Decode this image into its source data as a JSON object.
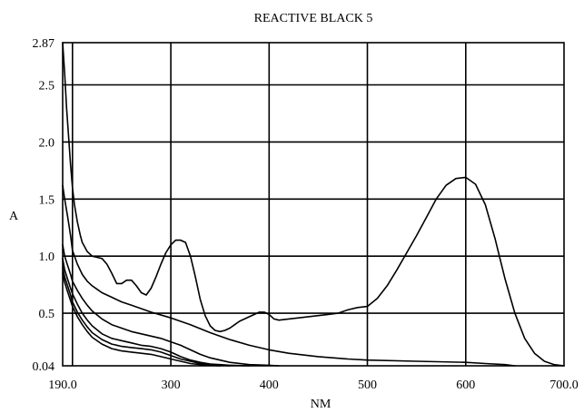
{
  "chart_data": {
    "type": "line",
    "title": "REACTIVE BLACK 5",
    "xlabel": "NM",
    "ylabel": "A",
    "xlim": [
      190.0,
      700.0
    ],
    "ylim": [
      0.04,
      2.87
    ],
    "x_ticks": [
      190.0,
      300,
      400,
      500,
      600,
      700.0
    ],
    "x_tick_labels": [
      "190.0",
      "300",
      "400",
      "500",
      "600",
      "700.0"
    ],
    "y_ticks": [
      0.04,
      0.5,
      1.0,
      1.5,
      2.0,
      2.5,
      2.87
    ],
    "y_tick_labels": [
      "0.04",
      "0.5",
      "1.0",
      "1.5",
      "2.0",
      "2.5",
      "2.87"
    ],
    "x_grid": [
      200,
      300,
      400,
      500,
      600
    ],
    "y_grid": [
      0.5,
      1.0,
      1.5,
      2.0,
      2.5
    ],
    "grid": true,
    "legend": "none",
    "series": [
      {
        "x": [
          190,
          192,
          194,
          196,
          198,
          200,
          202,
          205,
          208,
          210,
          215,
          220,
          225,
          230,
          235,
          240,
          245,
          250,
          255,
          260,
          265,
          270,
          275,
          280,
          285,
          290,
          295,
          300,
          305,
          310,
          315,
          320,
          325,
          330,
          335,
          340,
          345,
          350,
          355,
          360,
          365,
          370,
          375,
          380,
          385,
          390,
          395,
          400,
          405,
          410,
          420,
          430,
          440,
          450,
          460,
          470,
          480,
          490,
          500,
          510,
          520,
          530,
          540,
          550,
          560,
          570,
          580,
          590,
          600,
          610,
          620,
          630,
          640,
          650,
          660,
          670,
          680,
          690,
          700
        ],
        "values": [
          2.87,
          2.6,
          2.3,
          2.05,
          1.8,
          1.6,
          1.45,
          1.3,
          1.18,
          1.12,
          1.04,
          1.0,
          0.99,
          0.98,
          0.93,
          0.85,
          0.76,
          0.76,
          0.79,
          0.79,
          0.74,
          0.68,
          0.66,
          0.72,
          0.82,
          0.93,
          1.03,
          1.1,
          1.14,
          1.14,
          1.12,
          1.0,
          0.82,
          0.62,
          0.48,
          0.39,
          0.35,
          0.34,
          0.35,
          0.37,
          0.4,
          0.43,
          0.45,
          0.47,
          0.49,
          0.51,
          0.51,
          0.49,
          0.45,
          0.44,
          0.45,
          0.46,
          0.47,
          0.48,
          0.49,
          0.5,
          0.53,
          0.55,
          0.56,
          0.63,
          0.74,
          0.88,
          1.03,
          1.18,
          1.34,
          1.5,
          1.62,
          1.68,
          1.69,
          1.63,
          1.45,
          1.15,
          0.8,
          0.5,
          0.28,
          0.15,
          0.08,
          0.05,
          0.04
        ]
      },
      {
        "x": [
          190,
          192,
          195,
          198,
          200,
          205,
          210,
          215,
          220,
          225,
          230,
          240,
          250,
          260,
          280,
          300,
          320,
          340,
          360,
          380,
          400,
          420,
          450,
          480,
          500,
          550,
          600,
          620,
          640,
          650
        ],
        "values": [
          1.62,
          1.5,
          1.35,
          1.18,
          1.05,
          0.93,
          0.84,
          0.78,
          0.74,
          0.71,
          0.68,
          0.64,
          0.6,
          0.57,
          0.51,
          0.46,
          0.4,
          0.33,
          0.27,
          0.22,
          0.18,
          0.15,
          0.12,
          0.1,
          0.09,
          0.08,
          0.07,
          0.06,
          0.05,
          0.04
        ]
      },
      {
        "x": [
          190,
          192,
          195,
          198,
          200,
          205,
          210,
          215,
          220,
          230,
          240,
          250,
          260,
          270,
          280,
          290,
          300,
          310,
          320,
          330,
          340,
          350,
          360,
          380,
          400,
          410
        ],
        "values": [
          1.1,
          1.0,
          0.92,
          0.84,
          0.78,
          0.7,
          0.63,
          0.57,
          0.52,
          0.45,
          0.4,
          0.37,
          0.34,
          0.32,
          0.3,
          0.28,
          0.25,
          0.22,
          0.18,
          0.14,
          0.11,
          0.09,
          0.07,
          0.05,
          0.045,
          0.04
        ]
      },
      {
        "x": [
          190,
          192,
          195,
          198,
          200,
          205,
          210,
          215,
          220,
          230,
          240,
          250,
          260,
          270,
          280,
          290,
          300,
          310,
          320,
          330,
          340,
          350,
          360,
          380
        ],
        "values": [
          0.98,
          0.88,
          0.8,
          0.72,
          0.67,
          0.58,
          0.5,
          0.44,
          0.39,
          0.32,
          0.28,
          0.26,
          0.24,
          0.22,
          0.21,
          0.19,
          0.16,
          0.12,
          0.09,
          0.07,
          0.055,
          0.05,
          0.045,
          0.04
        ]
      },
      {
        "x": [
          190,
          192,
          195,
          198,
          200,
          205,
          210,
          215,
          220,
          230,
          240,
          250,
          260,
          270,
          280,
          290,
          300,
          310,
          320,
          330,
          340,
          350,
          360
        ],
        "values": [
          0.9,
          0.82,
          0.74,
          0.66,
          0.6,
          0.51,
          0.44,
          0.38,
          0.33,
          0.27,
          0.23,
          0.21,
          0.2,
          0.19,
          0.18,
          0.16,
          0.13,
          0.1,
          0.08,
          0.06,
          0.05,
          0.045,
          0.04
        ]
      },
      {
        "x": [
          190,
          192,
          195,
          198,
          200,
          205,
          210,
          215,
          220,
          230,
          240,
          250,
          260,
          270,
          280,
          290,
          300,
          310,
          320,
          330,
          340,
          350
        ],
        "values": [
          0.85,
          0.77,
          0.69,
          0.61,
          0.56,
          0.47,
          0.4,
          0.34,
          0.29,
          0.23,
          0.19,
          0.17,
          0.16,
          0.15,
          0.14,
          0.12,
          0.1,
          0.08,
          0.06,
          0.05,
          0.045,
          0.04
        ]
      }
    ]
  }
}
